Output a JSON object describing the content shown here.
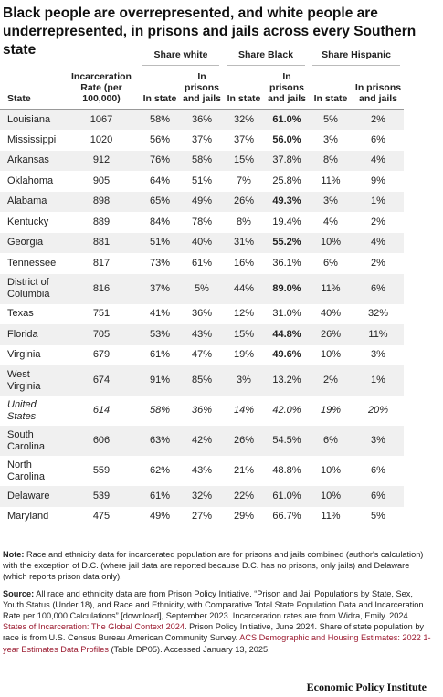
{
  "header": {
    "title": "Black people are overrepresented, and white people are underrepresented, in prisons and jails across every Southern state"
  },
  "table": {
    "groups": [
      "Share white",
      "Share Black",
      "Share Hispanic"
    ],
    "columns": [
      "State",
      "Incarceration Rate (per 100,000)",
      "In state",
      "In prisons and jails",
      "In state",
      "In prisons and jails",
      "In state",
      "In prisons and jails"
    ],
    "rows": [
      {
        "cells": [
          "Louisiana",
          "1067",
          "58%",
          "36%",
          "32%",
          "61.0%",
          "5%",
          "2%"
        ],
        "bold_black_prisons": true
      },
      {
        "cells": [
          "Mississippi",
          "1020",
          "56%",
          "37%",
          "37%",
          "56.0%",
          "3%",
          "6%"
        ],
        "bold_black_prisons": true
      },
      {
        "cells": [
          "Arkansas",
          "912",
          "76%",
          "58%",
          "15%",
          "37.8%",
          "8%",
          "4%"
        ]
      },
      {
        "cells": [
          "Oklahoma",
          "905",
          "64%",
          "51%",
          "7%",
          "25.8%",
          "11%",
          "9%"
        ]
      },
      {
        "cells": [
          "Alabama",
          "898",
          "65%",
          "49%",
          "26%",
          "49.3%",
          "3%",
          "1%"
        ],
        "bold_black_prisons": true
      },
      {
        "cells": [
          "Kentucky",
          "889",
          "84%",
          "78%",
          "8%",
          "19.4%",
          "4%",
          "2%"
        ]
      },
      {
        "cells": [
          "Georgia",
          "881",
          "51%",
          "40%",
          "31%",
          "55.2%",
          "10%",
          "4%"
        ],
        "bold_black_prisons": true
      },
      {
        "cells": [
          "Tennessee",
          "817",
          "73%",
          "61%",
          "16%",
          "36.1%",
          "6%",
          "2%"
        ]
      },
      {
        "cells": [
          "District of Columbia",
          "816",
          "37%",
          "5%",
          "44%",
          "89.0%",
          "11%",
          "6%"
        ],
        "bold_black_prisons": true
      },
      {
        "cells": [
          "Texas",
          "751",
          "41%",
          "36%",
          "12%",
          "31.0%",
          "40%",
          "32%"
        ]
      },
      {
        "cells": [
          "Florida",
          "705",
          "53%",
          "43%",
          "15%",
          "44.8%",
          "26%",
          "11%"
        ],
        "bold_black_prisons": true
      },
      {
        "cells": [
          "Virginia",
          "679",
          "61%",
          "47%",
          "19%",
          "49.6%",
          "10%",
          "3%"
        ],
        "bold_black_prisons": true
      },
      {
        "cells": [
          "West Virginia",
          "674",
          "91%",
          "85%",
          "3%",
          "13.2%",
          "2%",
          "1%"
        ]
      },
      {
        "cells": [
          "United States",
          "614",
          "58%",
          "36%",
          "14%",
          "42.0%",
          "19%",
          "20%"
        ],
        "italic": true
      },
      {
        "cells": [
          "South Carolina",
          "606",
          "63%",
          "42%",
          "26%",
          "54.5%",
          "6%",
          "3%"
        ]
      },
      {
        "cells": [
          "North Carolina",
          "559",
          "62%",
          "43%",
          "21%",
          "48.8%",
          "10%",
          "6%"
        ]
      },
      {
        "cells": [
          "Delaware",
          "539",
          "61%",
          "32%",
          "22%",
          "61.0%",
          "10%",
          "6%"
        ]
      },
      {
        "cells": [
          "Maryland",
          "475",
          "49%",
          "27%",
          "29%",
          "66.7%",
          "11%",
          "5%"
        ]
      }
    ]
  },
  "notes": {
    "note_label": "Note:",
    "note": "Race and ethnicity data for incarcerated population are for prisons and jails combined (author's calculation) with the exception of D.C. (where jail data are reported because D.C. has no prisons, only jails) and Delaware (which reports prison data only).",
    "source_label": "Source:",
    "source_parts": [
      {
        "text": "All race and ethnicity data are from Prison Policy Initiative. “Prison and Jail Populations by State, Sex, Youth Status (Under 18), and Race and Ethnicity, with Comparative Total State Population Data and Incarceration Rate per 100,000 Calculations” [download], September 2023. Incarceration rates are from Widra, Emily. 2024. "
      },
      {
        "text": "States of Incarceration: The Global Context 2024",
        "link": true
      },
      {
        "text": ". Prison Policy Initiative, June 2024. Share of state population by race is from U.S. Census Bureau American Community Survey. "
      },
      {
        "text": "ACS Demographic and Housing Estimates: 2022 1-year Estimates Data Profiles",
        "link": true
      },
      {
        "text": " (Table DP05). Accessed January 13, 2025."
      }
    ]
  },
  "footer": {
    "brand": "Economic Policy Institute"
  }
}
